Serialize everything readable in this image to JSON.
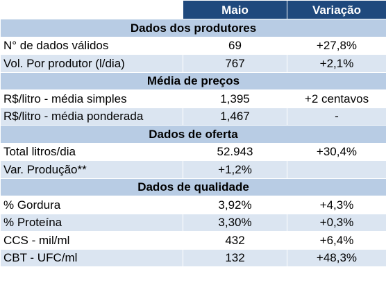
{
  "header": {
    "col1": "",
    "col2": "Maio",
    "col3": "Variação"
  },
  "sections": [
    {
      "title": "Dados dos produtores",
      "rows": [
        {
          "label": "N° de dados válidos",
          "maio": "69",
          "variacao": "+27,8%"
        },
        {
          "label": "Vol. Por produtor (l/dia)",
          "maio": "767",
          "variacao": "+2,1%"
        }
      ]
    },
    {
      "title": "Média de preços",
      "rows": [
        {
          "label": "R$/litro - média simples",
          "maio": "1,395",
          "variacao": "+2 centavos"
        },
        {
          "label": "R$/litro - média ponderada",
          "maio": "1,467",
          "variacao": "-"
        }
      ]
    },
    {
      "title": "Dados de oferta",
      "rows": [
        {
          "label": "Total litros/dia",
          "maio": "52.943",
          "variacao": "+30,4%"
        },
        {
          "label": "Var. Produção**",
          "maio": "+1,2%",
          "variacao": ""
        }
      ]
    },
    {
      "title": "Dados de qualidade",
      "rows": [
        {
          "label": "% Gordura",
          "maio": "3,92%",
          "variacao": "+4,3%"
        },
        {
          "label": "% Proteína",
          "maio": "3,30%",
          "variacao": "+0,3%"
        },
        {
          "label": "CCS - mil/ml",
          "maio": "432",
          "variacao": "+6,4%"
        },
        {
          "label": "CBT - UFC/ml",
          "maio": "132",
          "variacao": "+48,3%"
        }
      ]
    }
  ]
}
